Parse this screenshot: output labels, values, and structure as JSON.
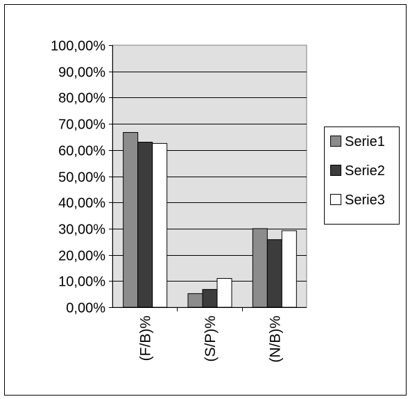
{
  "chart_data": {
    "type": "bar",
    "title": "",
    "xlabel": "",
    "ylabel": "",
    "categories": [
      "(F/B)%",
      "(S/P)%",
      "(N/B)%"
    ],
    "series": [
      {
        "name": "Serie1",
        "values": [
          66.7,
          5.2,
          30.0
        ],
        "color": "#8c8c8c"
      },
      {
        "name": "Serie2",
        "values": [
          63.0,
          6.8,
          25.8
        ],
        "color": "#3c3c3c"
      },
      {
        "name": "Serie3",
        "values": [
          62.5,
          11.0,
          29.2
        ],
        "color": "#ffffff"
      }
    ],
    "ylim": [
      0,
      100
    ],
    "yticks": [
      "0,00%",
      "10,00%",
      "20,00%",
      "30,00%",
      "40,00%",
      "50,00%",
      "60,00%",
      "70,00%",
      "80,00%",
      "90,00%",
      "100,00%"
    ],
    "grid": true,
    "plot_background": "#e0e0e0",
    "legend_position": "right"
  }
}
